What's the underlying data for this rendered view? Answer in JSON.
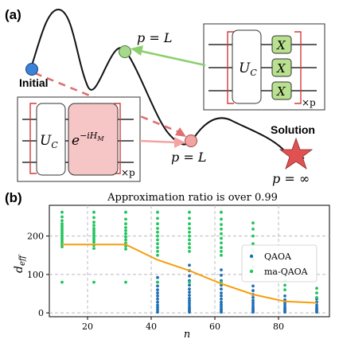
{
  "panel_a": {
    "label": "(a)",
    "label_initial": "Initial",
    "label_solution": "Solution",
    "p_L_top": "p = L",
    "p_L_bottom": "p = L",
    "p_inf": "p = ∞",
    "circuit_top": {
      "unitary": "U",
      "unitary_sub": "C",
      "gates": [
        "X",
        "X",
        "X"
      ],
      "repeat": "×p"
    },
    "circuit_bottom": {
      "unitary": "U",
      "unitary_sub": "C",
      "mixer": "e",
      "mixer_sup": "−iH",
      "mixer_sup_sub": "M",
      "repeat": "×p"
    },
    "colors": {
      "initial": "#3b82d9",
      "top_node": "#a6d98b",
      "bottom_node": "#f4a3a3",
      "star": "#e05252",
      "top_arrow": "#8ccf6b",
      "dashed": "#e07070",
      "gate_fill": "#b9e08f",
      "mixer_fill": "#f6c5c5",
      "bracket": "#d33a3a"
    }
  },
  "panel_b": {
    "label": "(b)",
    "chart_data": {
      "type": "scatter",
      "title": "Approximation ratio is over 0.99",
      "xlabel": "n",
      "ylabel": "d_eff",
      "xlim": [
        8,
        96
      ],
      "ylim": [
        -10,
        280
      ],
      "x_ticks": [
        20,
        40,
        60,
        80
      ],
      "y_ticks": [
        0,
        100,
        200
      ],
      "grid": true,
      "legend_position": "center-right",
      "series": [
        {
          "name": "QAOA",
          "color": "#1f6fb4",
          "points": [
            [
              42,
              2
            ],
            [
              42,
              8
            ],
            [
              42,
              14
            ],
            [
              42,
              20
            ],
            [
              42,
              28
            ],
            [
              42,
              36
            ],
            [
              42,
              44
            ],
            [
              42,
              52
            ],
            [
              42,
              60
            ],
            [
              42,
              70
            ],
            [
              42,
              80
            ],
            [
              42,
              92
            ],
            [
              52,
              2
            ],
            [
              52,
              6
            ],
            [
              52,
              10
            ],
            [
              52,
              14
            ],
            [
              52,
              20
            ],
            [
              52,
              26
            ],
            [
              52,
              32
            ],
            [
              52,
              38
            ],
            [
              52,
              46
            ],
            [
              52,
              54
            ],
            [
              52,
              62
            ],
            [
              52,
              72
            ],
            [
              52,
              84
            ],
            [
              52,
              96
            ],
            [
              52,
              110
            ],
            [
              52,
              124
            ],
            [
              62,
              2
            ],
            [
              62,
              6
            ],
            [
              62,
              10
            ],
            [
              62,
              16
            ],
            [
              62,
              22
            ],
            [
              62,
              28
            ],
            [
              62,
              36
            ],
            [
              62,
              44
            ],
            [
              62,
              52
            ],
            [
              62,
              62
            ],
            [
              62,
              72
            ],
            [
              62,
              84
            ],
            [
              62,
              98
            ],
            [
              62,
              112
            ],
            [
              72,
              2
            ],
            [
              72,
              6
            ],
            [
              72,
              10
            ],
            [
              72,
              14
            ],
            [
              72,
              20
            ],
            [
              72,
              26
            ],
            [
              72,
              32
            ],
            [
              72,
              40
            ],
            [
              72,
              48
            ],
            [
              72,
              58
            ],
            [
              72,
              70
            ],
            [
              82,
              2
            ],
            [
              82,
              6
            ],
            [
              82,
              10
            ],
            [
              82,
              14
            ],
            [
              82,
              20
            ],
            [
              82,
              26
            ],
            [
              82,
              34
            ],
            [
              82,
              44
            ],
            [
              92,
              2
            ],
            [
              92,
              6
            ],
            [
              92,
              10
            ],
            [
              92,
              14
            ],
            [
              92,
              20
            ],
            [
              92,
              28
            ],
            [
              92,
              36
            ]
          ]
        },
        {
          "name": "ma-QAOA",
          "color": "#22c55e",
          "points": [
            [
              12,
              172
            ],
            [
              12,
              178
            ],
            [
              12,
              184
            ],
            [
              12,
              190
            ],
            [
              12,
              196
            ],
            [
              12,
              202
            ],
            [
              12,
              208
            ],
            [
              12,
              214
            ],
            [
              12,
              220
            ],
            [
              12,
              226
            ],
            [
              12,
              232
            ],
            [
              12,
              240
            ],
            [
              12,
              250
            ],
            [
              12,
              262
            ],
            [
              12,
              80
            ],
            [
              22,
              168
            ],
            [
              22,
              176
            ],
            [
              22,
              184
            ],
            [
              22,
              190
            ],
            [
              22,
              196
            ],
            [
              22,
              202
            ],
            [
              22,
              208
            ],
            [
              22,
              214
            ],
            [
              22,
              220
            ],
            [
              22,
              228
            ],
            [
              22,
              236
            ],
            [
              22,
              248
            ],
            [
              22,
              262
            ],
            [
              22,
              80
            ],
            [
              32,
              166
            ],
            [
              32,
              174
            ],
            [
              32,
              182
            ],
            [
              32,
              190
            ],
            [
              32,
              198
            ],
            [
              32,
              206
            ],
            [
              32,
              214
            ],
            [
              32,
              222
            ],
            [
              32,
              232
            ],
            [
              32,
              244
            ],
            [
              32,
              262
            ],
            [
              32,
              80
            ],
            [
              42,
              150
            ],
            [
              42,
              160
            ],
            [
              42,
              170
            ],
            [
              42,
              180
            ],
            [
              42,
              190
            ],
            [
              42,
              200
            ],
            [
              42,
              210
            ],
            [
              42,
              220
            ],
            [
              42,
              232
            ],
            [
              42,
              246
            ],
            [
              42,
              262
            ],
            [
              42,
              80
            ],
            [
              52,
              160
            ],
            [
              52,
              170
            ],
            [
              52,
              180
            ],
            [
              52,
              190
            ],
            [
              52,
              200
            ],
            [
              52,
              210
            ],
            [
              52,
              220
            ],
            [
              52,
              232
            ],
            [
              52,
              246
            ],
            [
              52,
              262
            ],
            [
              52,
              80
            ],
            [
              62,
              150
            ],
            [
              62,
              160
            ],
            [
              62,
              170
            ],
            [
              62,
              182
            ],
            [
              62,
              194
            ],
            [
              62,
              206
            ],
            [
              62,
              218
            ],
            [
              62,
              230
            ],
            [
              62,
              244
            ],
            [
              62,
              262
            ],
            [
              62,
              80
            ],
            [
              72,
              120
            ],
            [
              72,
              140
            ],
            [
              72,
              160
            ],
            [
              72,
              180
            ],
            [
              72,
              200
            ],
            [
              72,
              218
            ],
            [
              72,
              234
            ],
            [
              82,
              60
            ],
            [
              82,
              72
            ],
            [
              82,
              84
            ],
            [
              82,
              96
            ],
            [
              92,
              40
            ],
            [
              92,
              52
            ],
            [
              92,
              64
            ]
          ]
        },
        {
          "name": "",
          "color": "#f59e0b",
          "type": "line",
          "points": [
            [
              12,
              178
            ],
            [
              22,
              178
            ],
            [
              32,
              178
            ],
            [
              42,
              138
            ],
            [
              52,
              110
            ],
            [
              62,
              76
            ],
            [
              72,
              48
            ],
            [
              82,
              30
            ],
            [
              92,
              26
            ]
          ]
        }
      ]
    }
  }
}
